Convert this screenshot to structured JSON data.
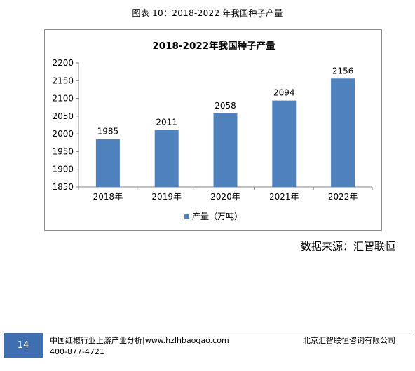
{
  "figure": {
    "caption": "图表 10：2018-2022 年我国种子产量"
  },
  "chart_data": {
    "type": "bar",
    "title": "2018-2022年我国种子产量",
    "categories": [
      "2018年",
      "2019年",
      "2020年",
      "2021年",
      "2022年"
    ],
    "series": [
      {
        "name": "产量（万吨）",
        "values": [
          1985,
          2011,
          2058,
          2094,
          2156
        ]
      }
    ],
    "data_labels": [
      "1985",
      "2011",
      "2058",
      "2094",
      "2156"
    ],
    "ylim": [
      1850,
      2200
    ],
    "yticks": [
      1850,
      1900,
      1950,
      2000,
      2050,
      2100,
      2150,
      2200
    ],
    "grid": false,
    "legend_position": "bottom",
    "colors": {
      "bar": "#4f81bd"
    }
  },
  "source": "数据来源：汇智联恒",
  "footer": {
    "page_number": "14",
    "left_line1": "中国红椒行业上游产业分析|www.hzlhbaogao.com",
    "left_line2": "400-877-4721",
    "right": "北京汇智联恒咨询有限公司",
    "badge_color": "#3f6fb0"
  }
}
